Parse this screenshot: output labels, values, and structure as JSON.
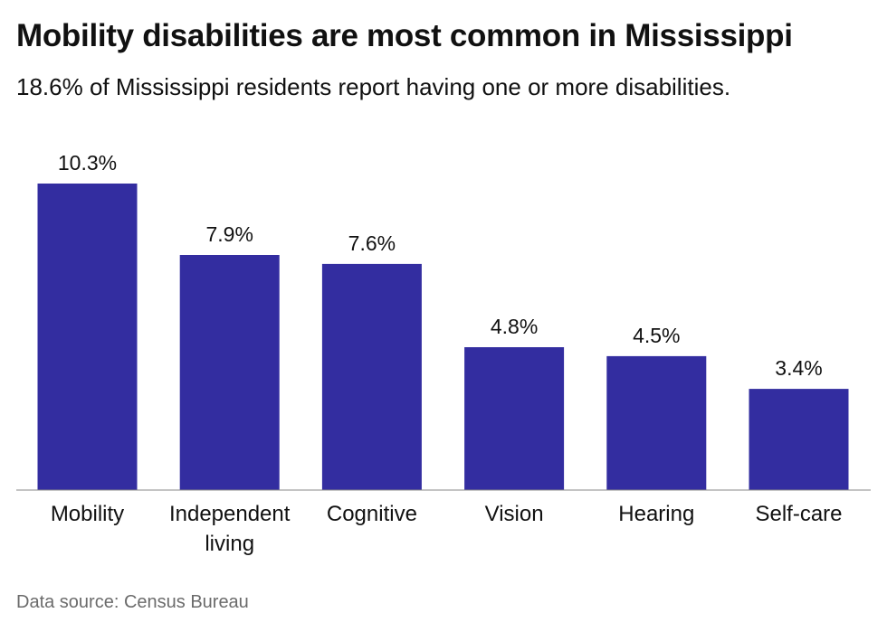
{
  "title": "Mobility disabilities are most common in Mississippi",
  "subtitle": "18.6% of Mississippi residents report having one or more disabilities.",
  "source": "Data source: Census Bureau",
  "colors": {
    "bar": "#332DA0",
    "axis": "#888888",
    "text": "#111111",
    "source_text": "#6b6b6b"
  },
  "chart_data": {
    "type": "bar",
    "categories": [
      [
        "Mobility"
      ],
      [
        "Independent",
        "living"
      ],
      [
        "Cognitive"
      ],
      [
        "Vision"
      ],
      [
        "Hearing"
      ],
      [
        "Self-care"
      ]
    ],
    "values": [
      10.3,
      7.9,
      7.6,
      4.8,
      4.5,
      3.4
    ],
    "value_labels": [
      "10.3%",
      "7.9%",
      "7.6%",
      "4.8%",
      "4.5%",
      "3.4%"
    ],
    "title": "Mobility disabilities are most common in Mississippi",
    "xlabel": "",
    "ylabel": "",
    "ylim": [
      0,
      10.3
    ],
    "grid": false,
    "legend": "none"
  }
}
